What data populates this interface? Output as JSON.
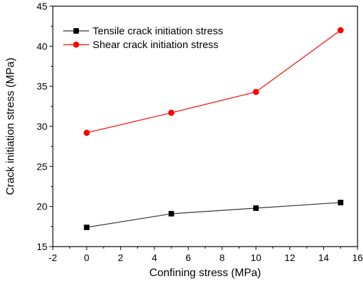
{
  "chart_data": {
    "type": "line",
    "title": "",
    "xlabel": "Confining stress (MPa)",
    "ylabel": "Crack initiation stress (MPa)",
    "xlim": [
      -2,
      16
    ],
    "ylim": [
      15,
      45
    ],
    "xticks": [
      -2,
      0,
      2,
      4,
      6,
      8,
      10,
      12,
      14,
      16
    ],
    "yticks": [
      15,
      20,
      25,
      30,
      35,
      40,
      45
    ],
    "x": [
      0,
      5,
      10,
      15
    ],
    "grid": false,
    "legend_position": "top-left",
    "series": [
      {
        "name": "Tensile crack initiation stress",
        "values": [
          17.4,
          19.1,
          19.8,
          20.5
        ],
        "color": "#000000",
        "line_color": "#333333",
        "marker": "square"
      },
      {
        "name": "Shear crack initiation stress",
        "values": [
          29.2,
          31.7,
          34.3,
          42.0
        ],
        "color": "#ff0000",
        "line_color": "#ff0000",
        "marker": "circle"
      }
    ]
  }
}
